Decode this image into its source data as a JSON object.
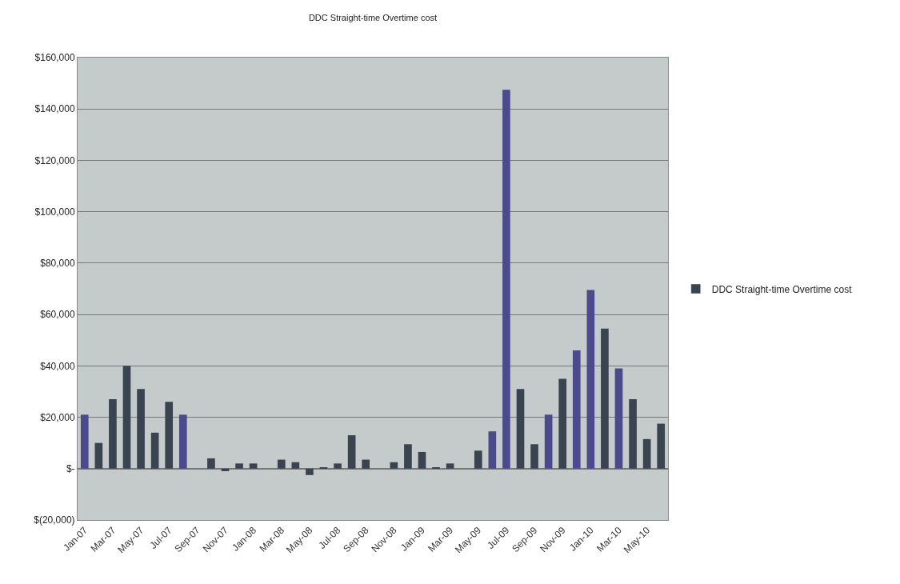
{
  "chart_data": {
    "type": "bar",
    "title": "DDC Straight-time Overtime cost",
    "categories": [
      "Jan-07",
      null,
      "Mar-07",
      null,
      "May-07",
      null,
      "Jul-07",
      null,
      "Sep-07",
      null,
      "Nov-07",
      null,
      "Jan-08",
      null,
      "Mar-08",
      null,
      "May-08",
      null,
      "Jul-08",
      null,
      "Sep-08",
      null,
      "Nov-08",
      null,
      "Jan-09",
      null,
      "Mar-09",
      null,
      "May-09",
      null,
      "Jul-09",
      null,
      "Sep-09",
      null,
      "Nov-09",
      null,
      "Jan-10",
      null,
      "Mar-10",
      null,
      "May-10",
      null
    ],
    "series": [
      {
        "name": "DDC Straight-time Overtime cost",
        "color": "#3a4350",
        "colors": [
          "#4a4a8c",
          "#3a4350",
          "#3a4350",
          "#3a4350",
          "#3a4350",
          "#3a4350",
          "#3a4350",
          "#4a4a8c",
          null,
          "#3a4350",
          "#3a4350",
          "#3a4350",
          "#3a4350",
          null,
          "#3a4350",
          "#3a4350",
          "#3a4350",
          "#3a4350",
          "#3a4350",
          "#3a4350",
          "#3a4350",
          null,
          "#3a4350",
          "#3a4350",
          "#3a4350",
          "#3a4350",
          "#3a4350",
          null,
          "#3a4350",
          "#4a4a8c",
          "#4a4a8c",
          "#3a4350",
          "#3a4350",
          "#4a4a8c",
          "#3a4350",
          "#4a4a8c",
          "#4a4a8c",
          "#3a4350",
          "#4a4a8c",
          "#3a4350",
          "#3a4350",
          "#3a4350"
        ],
        "values": [
          21000,
          10000,
          27000,
          40000,
          31000,
          14000,
          26000,
          21000,
          null,
          4000,
          -1000,
          2000,
          2000,
          null,
          3500,
          2500,
          -2500,
          500,
          2000,
          13000,
          3500,
          null,
          2500,
          9500,
          6500,
          500,
          2000,
          null,
          7000,
          14500,
          147500,
          31000,
          9500,
          21000,
          35000,
          46000,
          69500,
          54500,
          39000,
          27000,
          11500,
          17500
        ]
      }
    ],
    "ylim": [
      -20000,
      160000
    ],
    "yticks": [
      {
        "value": -20000,
        "label": "$(20,000)"
      },
      {
        "value": 0,
        "label": "$-"
      },
      {
        "value": 20000,
        "label": "$20,000"
      },
      {
        "value": 40000,
        "label": "$40,000"
      },
      {
        "value": 60000,
        "label": "$60,000"
      },
      {
        "value": 80000,
        "label": "$80,000"
      },
      {
        "value": 100000,
        "label": "$100,000"
      },
      {
        "value": 120000,
        "label": "$120,000"
      },
      {
        "value": 140000,
        "label": "$140,000"
      },
      {
        "value": 160000,
        "label": "$160,000"
      }
    ],
    "grid": "y",
    "legend": "right"
  }
}
